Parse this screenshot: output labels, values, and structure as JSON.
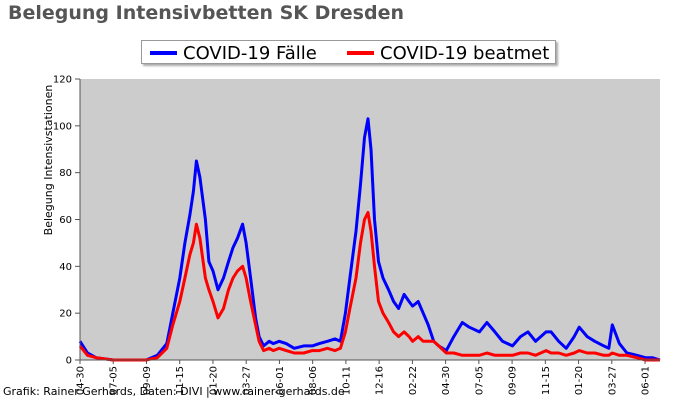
{
  "chart_data": {
    "type": "line",
    "title": "Belegung Intensivbetten SK Dresden",
    "xlabel": "",
    "ylabel": "Belegung Intensivstationen",
    "ylim": [
      0,
      120
    ],
    "yticks": [
      0,
      20,
      40,
      60,
      80,
      100,
      120
    ],
    "grid": false,
    "legend_position": "top-center",
    "background_color": "#cccccc",
    "x_tick_labels": [
      "04-30",
      "07-05",
      "09-09",
      "11-15",
      "01-20",
      "03-27",
      "06-01",
      "08-06",
      "10-11",
      "12-16",
      "02-22",
      "04-30",
      "07-05",
      "09-09",
      "11-15",
      "01-20",
      "03-27",
      "06-01"
    ],
    "x": [
      "2020-04-30",
      "2020-05-15",
      "2020-06-01",
      "2020-07-05",
      "2020-08-01",
      "2020-09-09",
      "2020-10-01",
      "2020-10-20",
      "2020-11-01",
      "2020-11-15",
      "2020-11-25",
      "2020-12-05",
      "2020-12-12",
      "2020-12-18",
      "2020-12-25",
      "2021-01-05",
      "2021-01-12",
      "2021-01-20",
      "2021-01-30",
      "2021-02-10",
      "2021-02-20",
      "2021-03-01",
      "2021-03-10",
      "2021-03-20",
      "2021-03-27",
      "2021-04-05",
      "2021-04-15",
      "2021-04-22",
      "2021-05-01",
      "2021-05-12",
      "2021-05-20",
      "2021-06-01",
      "2021-06-15",
      "2021-07-01",
      "2021-07-20",
      "2021-08-06",
      "2021-08-20",
      "2021-09-05",
      "2021-09-20",
      "2021-10-01",
      "2021-10-11",
      "2021-10-20",
      "2021-11-01",
      "2021-11-10",
      "2021-11-18",
      "2021-11-25",
      "2021-12-01",
      "2021-12-08",
      "2021-12-16",
      "2021-12-25",
      "2022-01-05",
      "2022-01-15",
      "2022-01-25",
      "2022-02-05",
      "2022-02-15",
      "2022-02-22",
      "2022-03-05",
      "2022-03-15",
      "2022-03-25",
      "2022-04-05",
      "2022-04-15",
      "2022-04-30",
      "2022-05-15",
      "2022-06-01",
      "2022-06-15",
      "2022-07-05",
      "2022-07-20",
      "2022-08-05",
      "2022-08-20",
      "2022-09-09",
      "2022-09-25",
      "2022-10-10",
      "2022-10-25",
      "2022-11-15",
      "2022-11-25",
      "2022-12-10",
      "2022-12-25",
      "2023-01-10",
      "2023-01-20",
      "2023-02-05",
      "2023-02-20",
      "2023-03-10",
      "2023-03-20",
      "2023-03-27",
      "2023-04-10",
      "2023-04-25",
      "2023-05-15",
      "2023-06-01",
      "2023-06-15",
      "2023-06-30"
    ],
    "series": [
      {
        "name": "COVID-19 Fälle",
        "color": "#0000ff",
        "values": [
          8,
          3,
          1,
          0,
          0,
          0,
          2,
          7,
          20,
          35,
          50,
          62,
          72,
          85,
          78,
          60,
          42,
          38,
          30,
          35,
          42,
          48,
          52,
          58,
          50,
          35,
          18,
          10,
          6,
          8,
          7,
          8,
          7,
          5,
          6,
          6,
          7,
          8,
          9,
          8,
          20,
          35,
          55,
          75,
          95,
          103,
          90,
          60,
          42,
          35,
          30,
          25,
          22,
          28,
          25,
          23,
          25,
          20,
          15,
          8,
          6,
          4,
          10,
          16,
          14,
          12,
          16,
          12,
          8,
          6,
          10,
          12,
          8,
          12,
          12,
          8,
          5,
          10,
          14,
          10,
          8,
          6,
          5,
          15,
          7,
          3,
          2,
          1,
          1,
          0
        ]
      },
      {
        "name": "COVID-19 beatmet",
        "color": "#ff0000",
        "values": [
          6,
          2,
          1,
          0,
          0,
          0,
          1,
          5,
          15,
          25,
          35,
          45,
          50,
          58,
          52,
          35,
          30,
          25,
          18,
          22,
          30,
          35,
          38,
          40,
          35,
          25,
          15,
          8,
          4,
          5,
          4,
          5,
          4,
          3,
          3,
          4,
          4,
          5,
          4,
          5,
          12,
          22,
          35,
          50,
          60,
          63,
          55,
          40,
          25,
          20,
          16,
          12,
          10,
          12,
          10,
          8,
          10,
          8,
          8,
          8,
          6,
          3,
          3,
          2,
          2,
          2,
          3,
          2,
          2,
          2,
          3,
          3,
          2,
          4,
          3,
          3,
          2,
          3,
          4,
          3,
          3,
          2,
          2,
          3,
          2,
          2,
          1,
          0,
          0,
          0
        ]
      }
    ]
  },
  "credit": "Grafik: Rainer Gerhards, Daten: DIVI | www.rainer-gerhards.de"
}
